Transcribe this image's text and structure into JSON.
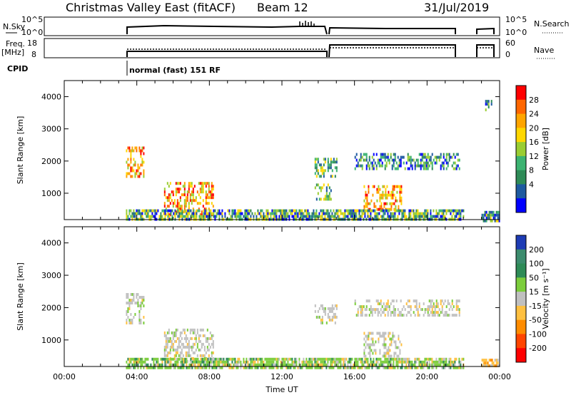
{
  "header": {
    "title": "Christmas Valley East (fitACF)",
    "beam": "Beam 12",
    "date": "31/Jul/2019"
  },
  "param_panels": {
    "nsky_label": "N.Sky",
    "nsky_ticks": [
      "10^5",
      "10^0"
    ],
    "nsearch_label": "N.Search",
    "nsearch_ticks": [
      "10^5",
      "10^0"
    ],
    "freq_label_1": "Freq.",
    "freq_label_2": "[MHz]",
    "freq_ticks": [
      "18",
      "8"
    ],
    "nave_label": "Nave",
    "nave_ticks": [
      "60",
      "0"
    ],
    "cpid_label": "CPID",
    "cpid_value": "normal (fast) 151 RF"
  },
  "chart_data": [
    {
      "type": "heatmap",
      "name": "power-panel",
      "ylabel": "Slant Range [km]",
      "yticks": [
        "4000",
        "3000",
        "2000",
        "1000"
      ],
      "ylim": [
        180,
        4500
      ],
      "xlim": [
        0,
        24
      ],
      "colorbar_label": "Power [dB]",
      "colorbar_ticks": [
        "28",
        "24",
        "20",
        "16",
        "12",
        "8",
        "4"
      ],
      "colorbar_colors": [
        "#ff0000",
        "#ff6600",
        "#ffa500",
        "#ffd700",
        "#9acd32",
        "#3cb371",
        "#2e8b57",
        "#1e5aa0",
        "#0000ff"
      ],
      "regions": [
        {
          "t0": 3.4,
          "t1": 4.4,
          "r0": 1550,
          "r1": 2450,
          "level": "high"
        },
        {
          "t0": 5.5,
          "t1": 8.2,
          "r0": 350,
          "r1": 1350,
          "level": "high"
        },
        {
          "t0": 13.8,
          "t1": 15.0,
          "r0": 1500,
          "r1": 2100,
          "level": "mid"
        },
        {
          "t0": 13.8,
          "t1": 14.7,
          "r0": 800,
          "r1": 1300,
          "level": "mid"
        },
        {
          "t0": 16.0,
          "t1": 21.8,
          "r0": 1750,
          "r1": 2250,
          "level": "low"
        },
        {
          "t0": 16.5,
          "t1": 18.6,
          "r0": 500,
          "r1": 1250,
          "level": "high"
        },
        {
          "t0": 3.4,
          "t1": 22.0,
          "r0": 180,
          "r1": 500,
          "level": "ground"
        },
        {
          "t0": 23.0,
          "t1": 24.0,
          "r0": 180,
          "r1": 450,
          "level": "ground"
        },
        {
          "t0": 23.2,
          "t1": 23.6,
          "r0": 3600,
          "r1": 3900,
          "level": "low"
        }
      ]
    },
    {
      "type": "heatmap",
      "name": "velocity-panel",
      "ylabel": "Slant Range [km]",
      "yticks": [
        "4000",
        "3000",
        "2000",
        "1000"
      ],
      "ylim": [
        180,
        4500
      ],
      "xlim": [
        0,
        24
      ],
      "xticks": [
        "00:00",
        "04:00",
        "08:00",
        "12:00",
        "16:00",
        "20:00",
        "00:00"
      ],
      "xlabel": "Time UT",
      "colorbar_label": "Velocity [m s⁻¹]",
      "colorbar_ticks": [
        "200",
        "100",
        "50",
        "15",
        "-15",
        "-50",
        "-100",
        "-200"
      ],
      "colorbar_colors": [
        "#1e3cb4",
        "#3c8c6e",
        "#2e8b57",
        "#7ccd3c",
        "#c0c0c0",
        "#ffc040",
        "#ff8c00",
        "#ff4500",
        "#ff0000"
      ],
      "regions": [
        {
          "t0": 3.4,
          "t1": 4.4,
          "r0": 1550,
          "r1": 2450,
          "level": "gray"
        },
        {
          "t0": 5.5,
          "t1": 8.2,
          "r0": 350,
          "r1": 1350,
          "level": "gray"
        },
        {
          "t0": 13.8,
          "t1": 15.0,
          "r0": 1500,
          "r1": 2100,
          "level": "gray"
        },
        {
          "t0": 16.0,
          "t1": 21.8,
          "r0": 1750,
          "r1": 2250,
          "level": "gray"
        },
        {
          "t0": 16.5,
          "t1": 18.6,
          "r0": 500,
          "r1": 1250,
          "level": "gray"
        },
        {
          "t0": 3.4,
          "t1": 22.0,
          "r0": 180,
          "r1": 450,
          "level": "green"
        },
        {
          "t0": 23.0,
          "t1": 24.0,
          "r0": 180,
          "r1": 420,
          "level": "orange"
        }
      ]
    }
  ]
}
